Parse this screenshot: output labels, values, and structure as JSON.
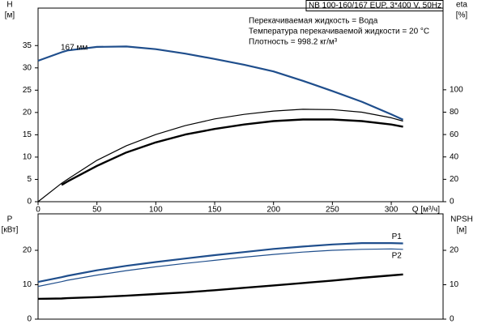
{
  "chart_data": [
    {
      "type": "line",
      "title": "NB 100-160/167 EUP, 3*400 V, 50Hz",
      "annotations": [
        "Перекачиваемая жидкость = Вода",
        "Температура перекачиваемой жидкости = 20 °C",
        "Плотность = 998.2 кг/м³"
      ],
      "xlabel": "Q [м³/ч]",
      "ylabel": "H",
      "yunit": "[м]",
      "y2label": "eta",
      "y2unit": "[%]",
      "x": [
        0,
        20,
        25,
        50,
        75,
        100,
        125,
        150,
        175,
        200,
        225,
        250,
        275,
        300,
        310
      ],
      "xlim": [
        0,
        344
      ],
      "xticks": [
        0,
        50,
        100,
        150,
        200,
        250,
        300
      ],
      "ylim": [
        0,
        43.4
      ],
      "yticks": [
        0,
        5,
        10,
        15,
        20,
        25,
        30,
        35
      ],
      "y2lim": [
        0,
        173
      ],
      "y2ticks": [
        0,
        20,
        40,
        60,
        80,
        100
      ],
      "grid": false,
      "series": [
        {
          "name": "167 мм",
          "color": "#1f4e8c",
          "width": 2.2,
          "values": [
            31.6,
            33.5,
            33.9,
            34.7,
            34.8,
            34.2,
            33.2,
            32.0,
            30.7,
            29.2,
            27.1,
            24.8,
            22.4,
            19.6,
            18.4
          ]
        },
        {
          "color": "#000000",
          "width": 1.2,
          "axis": "y2",
          "values": [
            0,
            16.5,
            20,
            37,
            50,
            60,
            68,
            74,
            78,
            81,
            82.6,
            82.3,
            80,
            75,
            72
          ]
        },
        {
          "color": "#000000",
          "width": 2.4,
          "axis": "y2",
          "values": [
            null,
            15,
            18,
            32,
            44,
            53,
            60,
            65,
            69,
            72,
            73.5,
            73.5,
            72,
            69,
            67
          ]
        }
      ]
    },
    {
      "type": "line",
      "ylabel": "P",
      "yunit": "[кВт]",
      "y2label": "NPSH",
      "y2unit": "[м]",
      "x": [
        0,
        20,
        25,
        50,
        75,
        100,
        125,
        150,
        175,
        200,
        225,
        250,
        275,
        300,
        310
      ],
      "xlim": [
        0,
        344
      ],
      "ylim": [
        0,
        30.6
      ],
      "yticks": [
        0,
        10,
        20
      ],
      "y2lim": [
        0,
        30.6
      ],
      "y2ticks": [
        0,
        10,
        20
      ],
      "grid": false,
      "series": [
        {
          "name": "P1",
          "color": "#1f4e8c",
          "width": 2.2,
          "values": [
            10.8,
            12.2,
            12.6,
            14.2,
            15.5,
            16.6,
            17.6,
            18.6,
            19.5,
            20.4,
            21.1,
            21.7,
            22.1,
            22.1,
            22.0
          ]
        },
        {
          "name": "P2",
          "color": "#1f4e8c",
          "width": 1.2,
          "values": [
            9.5,
            10.9,
            11.3,
            12.8,
            14.1,
            15.2,
            16.2,
            17.1,
            18.0,
            18.8,
            19.5,
            20.0,
            20.3,
            20.4,
            20.3
          ]
        },
        {
          "color": "#000000",
          "width": 2.4,
          "axis": "y2",
          "values": [
            5.9,
            6.0,
            6.1,
            6.4,
            6.8,
            7.3,
            7.8,
            8.4,
            9.1,
            9.8,
            10.5,
            11.2,
            12.0,
            12.7,
            13.0
          ]
        }
      ]
    }
  ]
}
